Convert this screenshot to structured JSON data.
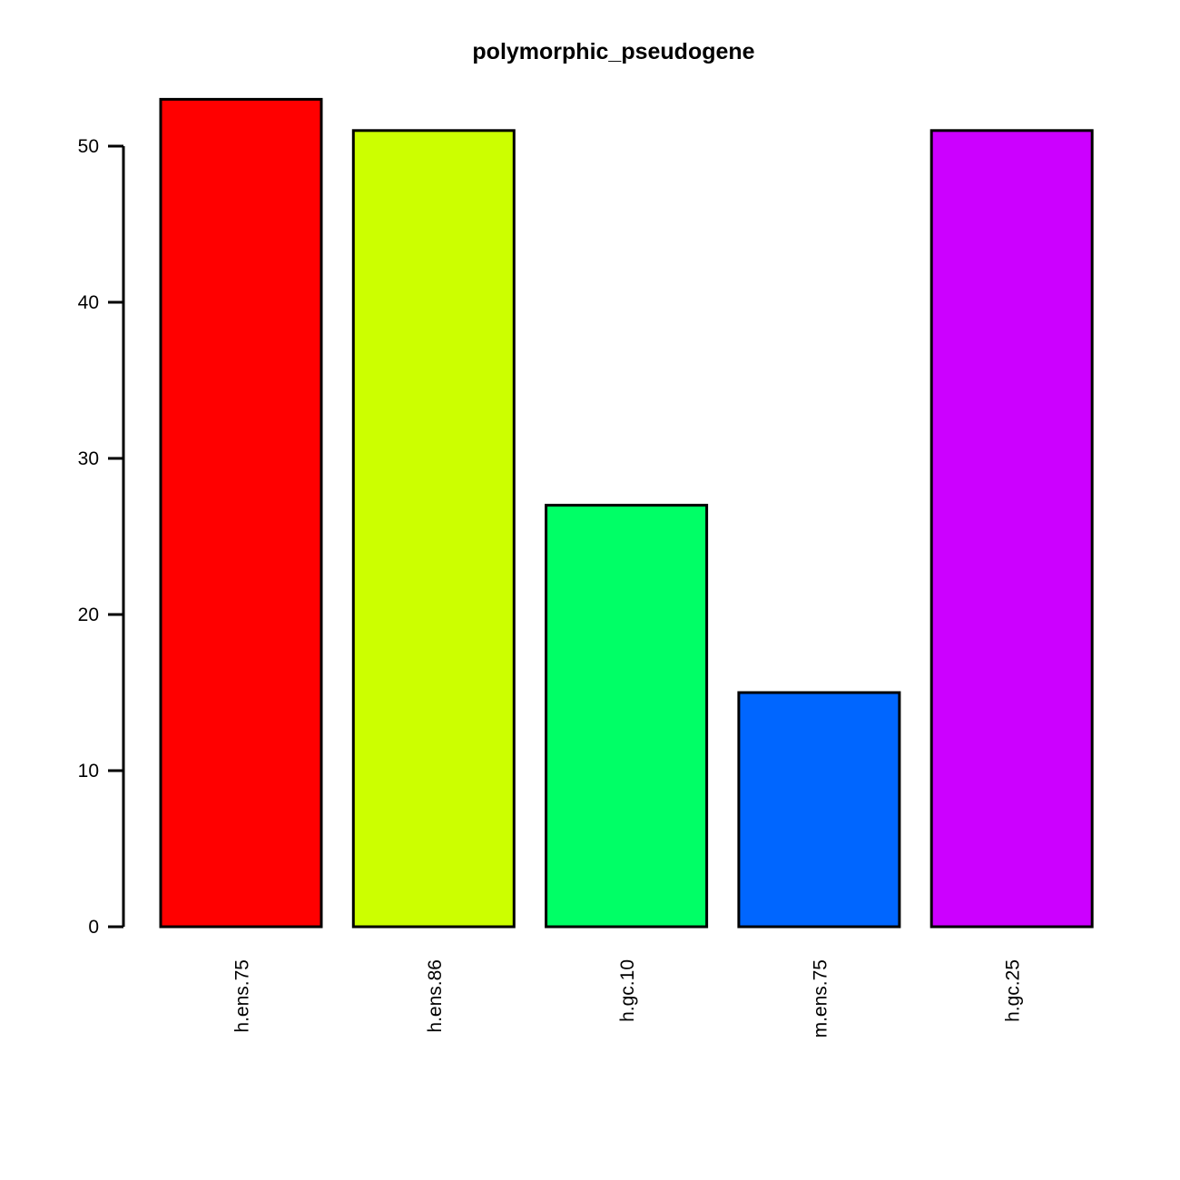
{
  "chart_data": {
    "type": "bar",
    "title": "polymorphic_pseudogene",
    "xlabel": "",
    "ylabel": "",
    "categories": [
      "h.ens.75",
      "h.ens.86",
      "h.gc.10",
      "m.ens.75",
      "h.gc.25"
    ],
    "values": [
      53,
      51,
      27,
      15,
      51
    ],
    "colors": [
      "#FF0000",
      "#CCFF00",
      "#00FF66",
      "#0066FF",
      "#CC00FF"
    ],
    "y_ticks": [
      0,
      10,
      20,
      30,
      40,
      50
    ],
    "y_tick_labels": [
      "0",
      "10",
      "20",
      "30",
      "40",
      "50"
    ],
    "ylim": [
      0,
      53
    ],
    "grid": false,
    "legend": "none"
  }
}
